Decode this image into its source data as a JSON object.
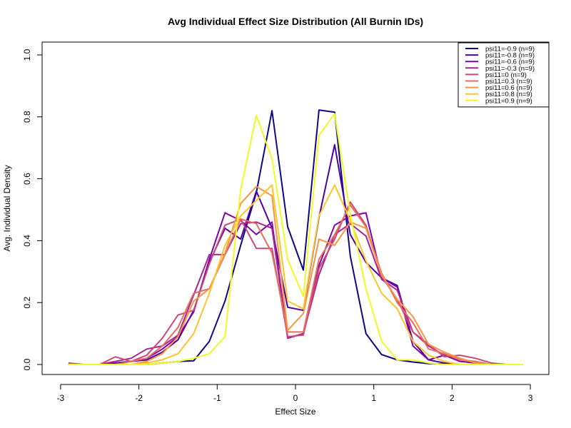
{
  "chart_data": {
    "type": "line",
    "title": "Avg Individual Effect Size Distribution (All Burnin IDs)",
    "xlabel": "Effect Size",
    "ylabel": "Avg. Individual Density",
    "xlim": [
      -3.0,
      3.0
    ],
    "ylim": [
      0.0,
      1.0
    ],
    "xticks": [
      -3,
      -2,
      -1,
      0,
      1,
      2,
      3
    ],
    "yticks": [
      0.0,
      0.2,
      0.4,
      0.6,
      0.8,
      1.0
    ],
    "grid": false,
    "legend_position": "top-right",
    "x": [
      -2.9,
      -2.7,
      -2.5,
      -2.3,
      -2.1,
      -1.9,
      -1.7,
      -1.5,
      -1.3,
      -1.1,
      -0.9,
      -0.7,
      -0.5,
      -0.3,
      -0.1,
      0.1,
      0.3,
      0.5,
      0.7,
      0.9,
      1.1,
      1.3,
      1.5,
      1.7,
      1.9,
      2.1,
      2.3,
      2.5,
      2.7,
      2.9
    ],
    "series": [
      {
        "name": "psi11=-0.9 (n=9)",
        "color": "#0d0887",
        "values": [
          0.0,
          0.0,
          0.0,
          0.0,
          0.0,
          0.0,
          0.005,
          0.01,
          0.012,
          0.075,
          0.205,
          0.385,
          0.555,
          0.82,
          0.445,
          0.305,
          0.822,
          0.815,
          0.35,
          0.1,
          0.032,
          0.015,
          0.008,
          0.003,
          0.002,
          0.0,
          0.0,
          0.0,
          0.0,
          0.0
        ]
      },
      {
        "name": "psi11=-0.8 (n=9)",
        "color": "#4c02a1",
        "values": [
          0.0,
          0.0,
          0.0,
          0.005,
          0.01,
          0.015,
          0.04,
          0.08,
          0.175,
          0.33,
          0.44,
          0.405,
          0.56,
          0.44,
          0.185,
          0.175,
          0.475,
          0.71,
          0.42,
          0.33,
          0.28,
          0.255,
          0.075,
          0.015,
          0.005,
          0.0,
          0.0,
          0.0,
          0.0,
          0.0
        ]
      },
      {
        "name": "psi11=-0.6 (n=9)",
        "color": "#7e03a8",
        "values": [
          0.0,
          0.0,
          0.0,
          0.005,
          0.01,
          0.02,
          0.05,
          0.09,
          0.17,
          0.34,
          0.49,
          0.465,
          0.42,
          0.46,
          0.085,
          0.1,
          0.32,
          0.45,
          0.48,
          0.49,
          0.28,
          0.25,
          0.06,
          0.015,
          0.03,
          0.01,
          0.005,
          0.0,
          0.0,
          0.0
        ]
      },
      {
        "name": "psi11=-0.3 (n=9)",
        "color": "#a92395",
        "values": [
          0.0,
          0.0,
          0.0,
          0.01,
          0.02,
          0.05,
          0.06,
          0.095,
          0.225,
          0.355,
          0.355,
          0.455,
          0.46,
          0.44,
          0.085,
          0.1,
          0.29,
          0.42,
          0.455,
          0.415,
          0.275,
          0.24,
          0.105,
          0.06,
          0.03,
          0.02,
          0.005,
          0.0,
          0.0,
          0.0
        ]
      },
      {
        "name": "psi11=0 (n=9)",
        "color": "#cc4778",
        "values": [
          0.005,
          0.0,
          0.0,
          0.025,
          0.01,
          0.03,
          0.085,
          0.16,
          0.175,
          0.325,
          0.45,
          0.47,
          0.375,
          0.375,
          0.09,
          0.095,
          0.31,
          0.405,
          0.525,
          0.45,
          0.285,
          0.21,
          0.105,
          0.065,
          0.025,
          0.03,
          0.02,
          0.005,
          0.0,
          0.0
        ]
      },
      {
        "name": "psi11=0.3 (n=9)",
        "color": "#e66c5c",
        "values": [
          0.0,
          0.0,
          0.0,
          0.0,
          0.01,
          0.02,
          0.06,
          0.12,
          0.23,
          0.245,
          0.355,
          0.47,
          0.455,
          0.36,
          0.105,
          0.105,
          0.34,
          0.42,
          0.515,
          0.445,
          0.295,
          0.2,
          0.135,
          0.05,
          0.035,
          0.015,
          0.01,
          0.0,
          0.0,
          0.0
        ]
      },
      {
        "name": "psi11=0.6 (n=9)",
        "color": "#f89540",
        "values": [
          0.0,
          0.0,
          0.0,
          0.0,
          0.0,
          0.01,
          0.035,
          0.09,
          0.205,
          0.245,
          0.36,
          0.52,
          0.575,
          0.545,
          0.11,
          0.165,
          0.405,
          0.385,
          0.46,
          0.44,
          0.29,
          0.21,
          0.155,
          0.065,
          0.04,
          0.02,
          0.005,
          0.0,
          0.0,
          0.0
        ]
      },
      {
        "name": "psi11=0.8 (n=9)",
        "color": "#fdc328",
        "values": [
          0.0,
          0.0,
          0.0,
          0.0,
          0.0,
          0.005,
          0.015,
          0.035,
          0.1,
          0.23,
          0.385,
          0.48,
          0.53,
          0.58,
          0.205,
          0.18,
          0.48,
          0.58,
          0.465,
          0.335,
          0.23,
          0.18,
          0.075,
          0.03,
          0.01,
          0.0,
          0.0,
          0.0,
          0.0,
          0.0
        ]
      },
      {
        "name": "psi11=0.9 (n=9)",
        "color": "#f0f921",
        "values": [
          0.0,
          0.0,
          0.0,
          0.0,
          0.0,
          0.0,
          0.005,
          0.01,
          0.02,
          0.035,
          0.09,
          0.565,
          0.805,
          0.665,
          0.34,
          0.22,
          0.74,
          0.81,
          0.485,
          0.245,
          0.075,
          0.015,
          0.015,
          0.005,
          0.0,
          0.0,
          0.0,
          0.0,
          0.0,
          0.0
        ]
      }
    ]
  }
}
